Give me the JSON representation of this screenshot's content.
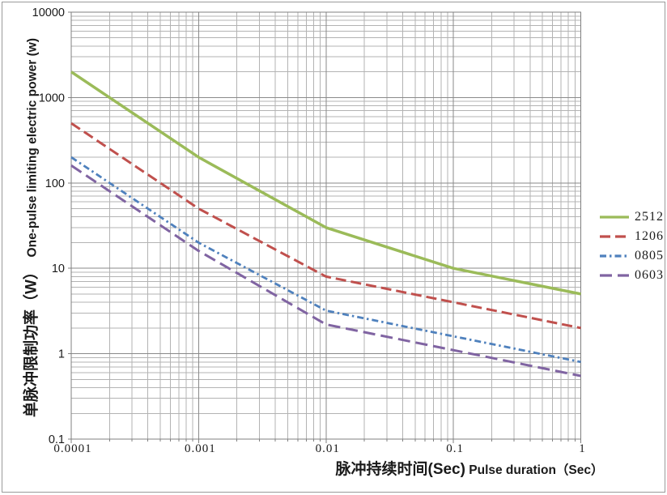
{
  "chart_data": {
    "type": "line",
    "title": "",
    "x_scale": "log",
    "y_scale": "log",
    "xlim": [
      0.0001,
      1
    ],
    "ylim": [
      0.1,
      10000
    ],
    "grid": "major and minor log gridlines on both axes",
    "legend_position": "right-middle",
    "xlabel_cn": "脉冲持续时间(Sec)",
    "xlabel_en": "Pulse duration（Sec）",
    "xlabel_full": "脉冲持续时间(Sec) Pulse duration（Sec）",
    "ylabel_cn": "单脉冲限制功率（W）",
    "ylabel_en": "One-pulse limiting electric power (w)",
    "ylabel_full": "单脉冲限制功率（W） One-pulse limiting electric power (w)",
    "x_ticks": [
      {
        "v": 0.0001,
        "label": "0.0001"
      },
      {
        "v": 0.001,
        "label": "0.001"
      },
      {
        "v": 0.01,
        "label": "0.01"
      },
      {
        "v": 0.1,
        "label": "0.1"
      },
      {
        "v": 1,
        "label": "1"
      }
    ],
    "y_ticks": [
      {
        "v": 10000,
        "label": "10000"
      },
      {
        "v": 1000,
        "label": "1000"
      },
      {
        "v": 100,
        "label": "100"
      },
      {
        "v": 10,
        "label": "10"
      },
      {
        "v": 1,
        "label": "1"
      },
      {
        "v": 0.1,
        "label": "0.1"
      }
    ],
    "x": [
      0.0001,
      0.001,
      0.01,
      0.1,
      1
    ],
    "series": [
      {
        "name": "2512",
        "color": "#9BBB59",
        "dash": "solid",
        "width": 3.5,
        "values": [
          2000,
          200,
          30,
          10,
          5
        ]
      },
      {
        "name": "1206",
        "color": "#C0504D",
        "dash": "dash",
        "width": 3.0,
        "values": [
          500,
          50,
          8,
          4,
          2
        ]
      },
      {
        "name": "0805",
        "color": "#4F81BD",
        "dash": "dashdot",
        "width": 2.8,
        "values": [
          200,
          20,
          3.2,
          1.6,
          0.8
        ]
      },
      {
        "name": "0603",
        "color": "#8064A2",
        "dash": "longdash",
        "width": 3.0,
        "values": [
          160,
          16,
          2.2,
          1.1,
          0.55
        ]
      }
    ]
  },
  "colors": {
    "grid_minor": "#b3b3b3",
    "grid_major": "#8a8a8a",
    "plot_border": "#808080",
    "outer_border": "#9a9a9a",
    "text": "#1a1a1a"
  }
}
